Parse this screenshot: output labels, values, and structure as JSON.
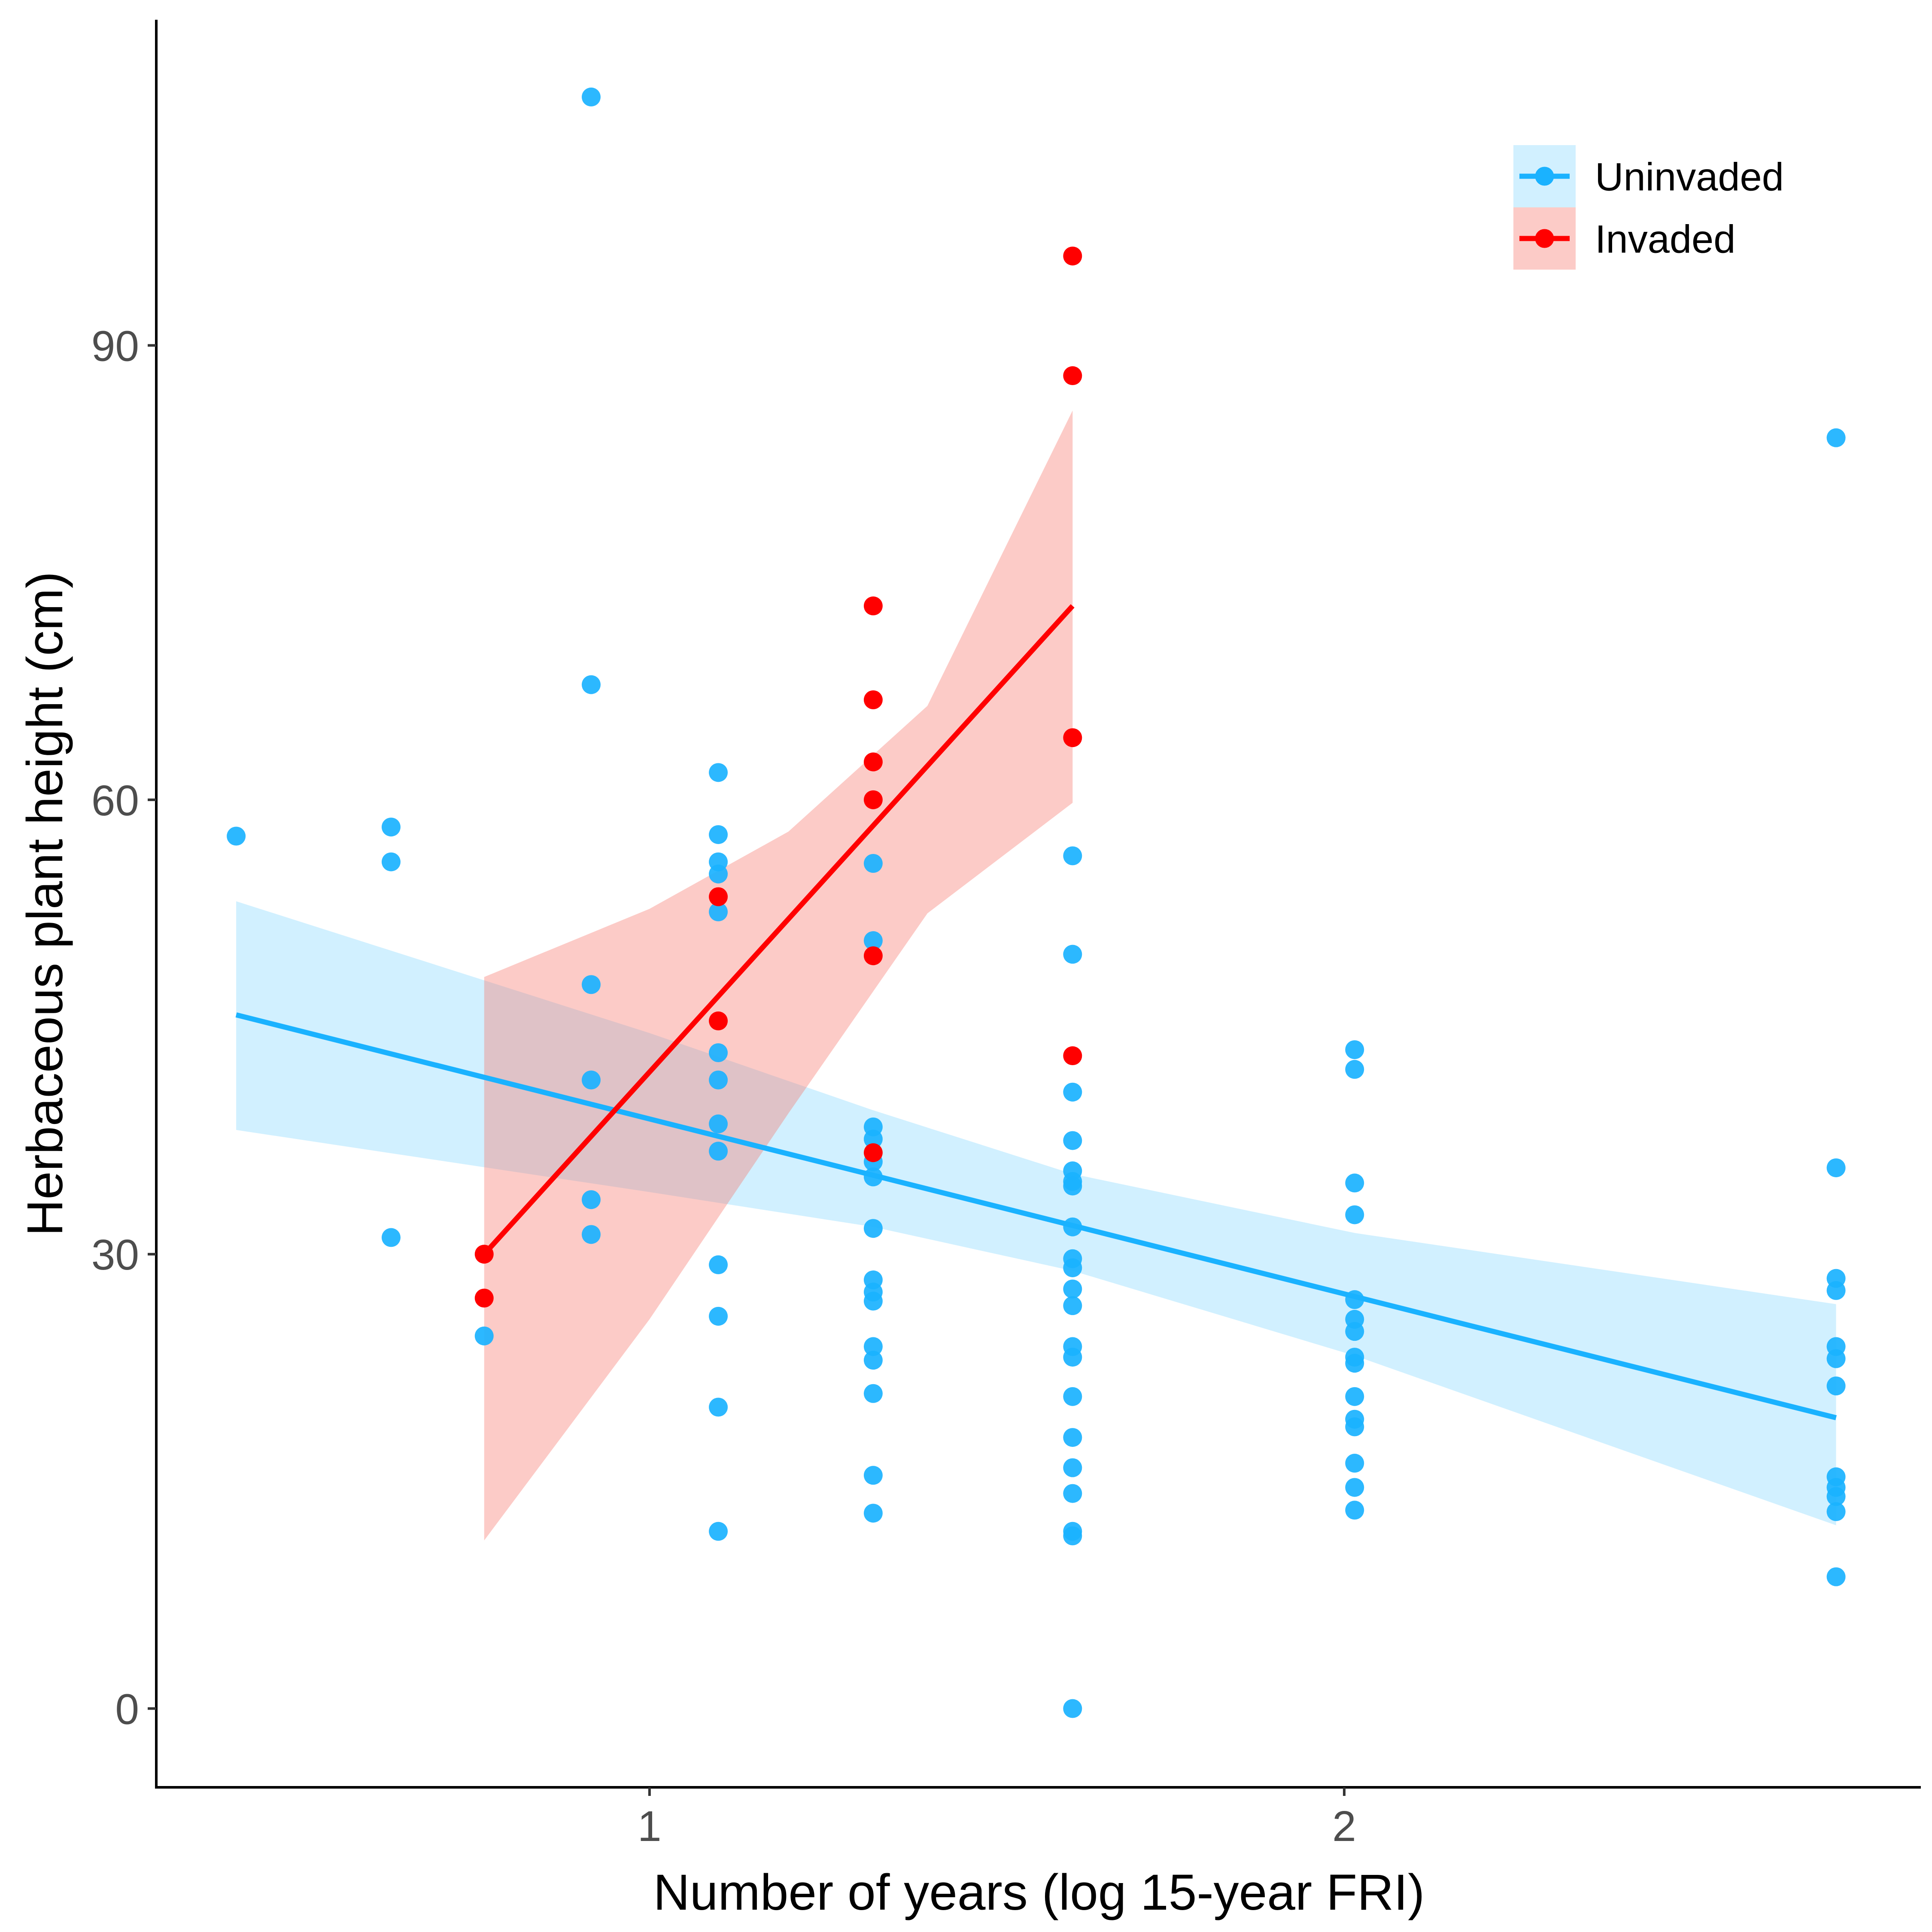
{
  "chart_data": {
    "type": "scatter",
    "xlabel": "Number of years (log 15-year FRI)",
    "ylabel": "Herbaceous plant height (cm)",
    "xlim": [
      0.29,
      2.83
    ],
    "ylim": [
      -5.2,
      111.5
    ],
    "x_ticks": [
      1,
      2
    ],
    "x_tick_labels": [
      "1",
      "2"
    ],
    "y_ticks": [
      0,
      30,
      60,
      90
    ],
    "y_tick_labels": [
      "0",
      "30",
      "60",
      "90"
    ],
    "grid": false,
    "legend_position": "top-right",
    "series": [
      {
        "name": "Uninvaded",
        "color": "#1AB2FF",
        "band_color": "#1AB2FF",
        "points": [
          [
            0.405,
            57.6
          ],
          [
            0.628,
            58.2
          ],
          [
            0.628,
            55.9
          ],
          [
            0.628,
            31.1
          ],
          [
            0.762,
            24.6
          ],
          [
            0.916,
            106.4
          ],
          [
            0.916,
            67.6
          ],
          [
            0.916,
            47.8
          ],
          [
            0.916,
            41.5
          ],
          [
            0.916,
            33.6
          ],
          [
            0.916,
            31.3
          ],
          [
            1.099,
            61.8
          ],
          [
            1.099,
            57.7
          ],
          [
            1.099,
            55.9
          ],
          [
            1.099,
            55.1
          ],
          [
            1.099,
            52.6
          ],
          [
            1.099,
            43.3
          ],
          [
            1.099,
            41.5
          ],
          [
            1.099,
            38.6
          ],
          [
            1.099,
            36.8
          ],
          [
            1.099,
            29.3
          ],
          [
            1.099,
            25.9
          ],
          [
            1.099,
            19.9
          ],
          [
            1.099,
            11.7
          ],
          [
            1.322,
            55.8
          ],
          [
            1.322,
            50.7
          ],
          [
            1.322,
            38.4
          ],
          [
            1.322,
            37.6
          ],
          [
            1.322,
            36.1
          ],
          [
            1.322,
            35.1
          ],
          [
            1.322,
            31.7
          ],
          [
            1.322,
            28.3
          ],
          [
            1.322,
            27.5
          ],
          [
            1.322,
            26.9
          ],
          [
            1.322,
            23.9
          ],
          [
            1.322,
            23.0
          ],
          [
            1.322,
            20.8
          ],
          [
            1.322,
            15.4
          ],
          [
            1.322,
            12.9
          ],
          [
            1.609,
            56.3
          ],
          [
            1.609,
            49.8
          ],
          [
            1.609,
            40.7
          ],
          [
            1.609,
            37.5
          ],
          [
            1.609,
            35.5
          ],
          [
            1.609,
            34.8
          ],
          [
            1.609,
            34.5
          ],
          [
            1.609,
            31.8
          ],
          [
            1.609,
            29.7
          ],
          [
            1.609,
            29.1
          ],
          [
            1.609,
            27.7
          ],
          [
            1.609,
            26.6
          ],
          [
            1.609,
            23.9
          ],
          [
            1.609,
            23.2
          ],
          [
            1.609,
            20.6
          ],
          [
            1.609,
            17.9
          ],
          [
            1.609,
            15.9
          ],
          [
            1.609,
            14.2
          ],
          [
            1.609,
            11.7
          ],
          [
            1.609,
            11.4
          ],
          [
            1.609,
            0.0
          ],
          [
            2.015,
            43.5
          ],
          [
            2.015,
            42.2
          ],
          [
            2.015,
            34.7
          ],
          [
            2.015,
            32.6
          ],
          [
            2.015,
            27.0
          ],
          [
            2.015,
            25.7
          ],
          [
            2.015,
            24.9
          ],
          [
            2.015,
            23.2
          ],
          [
            2.015,
            22.8
          ],
          [
            2.015,
            20.6
          ],
          [
            2.015,
            19.1
          ],
          [
            2.015,
            18.6
          ],
          [
            2.015,
            16.2
          ],
          [
            2.015,
            14.6
          ],
          [
            2.015,
            13.1
          ],
          [
            2.708,
            83.9
          ],
          [
            2.708,
            35.7
          ],
          [
            2.708,
            28.4
          ],
          [
            2.708,
            27.6
          ],
          [
            2.708,
            23.9
          ],
          [
            2.708,
            23.1
          ],
          [
            2.708,
            21.3
          ],
          [
            2.708,
            15.3
          ],
          [
            2.708,
            14.6
          ],
          [
            2.708,
            14.0
          ],
          [
            2.708,
            13.0
          ],
          [
            2.708,
            8.7
          ]
        ],
        "fit_line": [
          [
            0.405,
            45.8
          ],
          [
            2.708,
            19.2
          ]
        ],
        "band_upper": [
          [
            0.405,
            53.3
          ],
          [
            1.0,
            44.6
          ],
          [
            1.322,
            39.5
          ],
          [
            1.609,
            35.3
          ],
          [
            2.015,
            31.4
          ],
          [
            2.708,
            26.7
          ]
        ],
        "band_lower": [
          [
            0.405,
            38.2
          ],
          [
            1.0,
            34.1
          ],
          [
            1.322,
            31.8
          ],
          [
            1.609,
            28.9
          ],
          [
            2.015,
            23.3
          ],
          [
            2.708,
            12.1
          ]
        ]
      },
      {
        "name": "Invaded",
        "color": "#FF0000",
        "band_color": "#F8766D",
        "points": [
          [
            0.762,
            30.0
          ],
          [
            0.762,
            27.1
          ],
          [
            1.099,
            53.6
          ],
          [
            1.099,
            45.4
          ],
          [
            1.322,
            72.8
          ],
          [
            1.322,
            66.6
          ],
          [
            1.322,
            62.5
          ],
          [
            1.322,
            60.0
          ],
          [
            1.322,
            49.7
          ],
          [
            1.322,
            36.7
          ],
          [
            1.609,
            95.9
          ],
          [
            1.609,
            88.0
          ],
          [
            1.609,
            64.1
          ],
          [
            1.609,
            43.1
          ]
        ],
        "fit_line": [
          [
            0.762,
            30.0
          ],
          [
            1.609,
            72.8
          ]
        ],
        "band_upper": [
          [
            0.762,
            48.3
          ],
          [
            1.0,
            52.8
          ],
          [
            1.2,
            57.9
          ],
          [
            1.4,
            66.2
          ],
          [
            1.609,
            85.7
          ]
        ],
        "band_lower": [
          [
            0.762,
            11.1
          ],
          [
            1.0,
            25.7
          ],
          [
            1.2,
            39.3
          ],
          [
            1.4,
            52.5
          ],
          [
            1.609,
            59.8
          ]
        ]
      }
    ]
  }
}
